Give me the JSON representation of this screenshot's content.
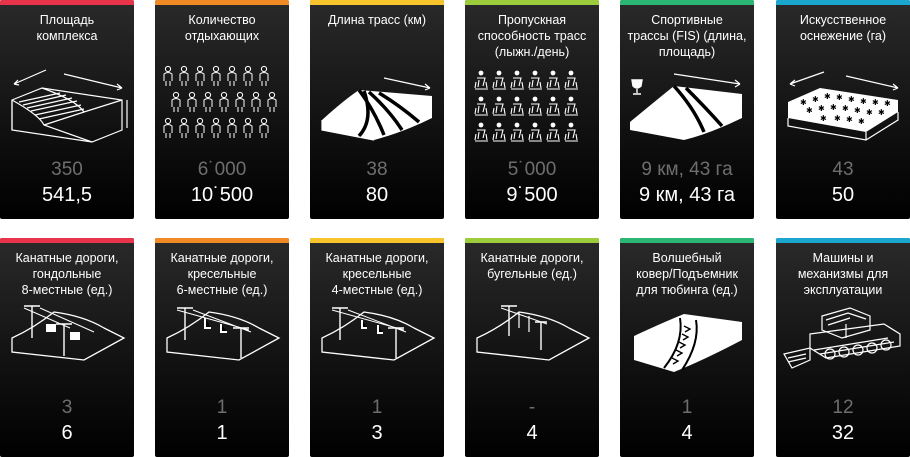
{
  "cards": [
    {
      "title": "Площадь\nкомплекса",
      "value_old": "350",
      "value_new": "541,5",
      "accent": "#e8344b",
      "icon": "area-icon"
    },
    {
      "title": "Количество\nотдыхающих",
      "value_old": "6˙000",
      "value_new": "10˙500",
      "accent": "#f08a24",
      "icon": "people-icon"
    },
    {
      "title": "Длина трасс (км)",
      "value_old": "38",
      "value_new": "80",
      "accent": "#f7c52b",
      "icon": "slopes-icon"
    },
    {
      "title": "Пропускная\nспособность трасс\n(лыжн./день)",
      "value_old": "5˙000",
      "value_new": "9˙500",
      "accent": "#9ccc3b",
      "icon": "skiers-icon"
    },
    {
      "title": "Спортивные\nтрассы (FIS) (длина,\nплощадь)",
      "value_old": "9 км, 43 га",
      "value_new": "9 км, 43 га",
      "accent": "#2bb673",
      "icon": "trophy-slope-icon"
    },
    {
      "title": "Искусственное\nоснежение (га)",
      "value_old": "43",
      "value_new": "50",
      "accent": "#1ba6cf",
      "icon": "snowmaking-icon"
    },
    {
      "title": "Канатные дороги,\nгондольные\n8-местные (ед.)",
      "value_old": "3",
      "value_new": "6",
      "accent": "#e8344b",
      "icon": "gondola-icon"
    },
    {
      "title": "Канатные дороги,\nкресельные\n6-местные (ед.)",
      "value_old": "1",
      "value_new": "1",
      "accent": "#f08a24",
      "icon": "chairlift-6-icon"
    },
    {
      "title": "Канатные дороги,\nкресельные\n4-местные (ед.)",
      "value_old": "1",
      "value_new": "3",
      "accent": "#f7c52b",
      "icon": "chairlift-4-icon"
    },
    {
      "title": "Канатные дороги,\nбугельные (ед.)",
      "value_old": "-",
      "value_new": "4",
      "accent": "#9ccc3b",
      "icon": "draglift-icon"
    },
    {
      "title": "Волшебный\nковер/Подъемник\nдля тюбинга (ед.)",
      "value_old": "1",
      "value_new": "4",
      "accent": "#2bb673",
      "icon": "magic-carpet-icon"
    },
    {
      "title": "Машины и\nмеханизмы для\nэксплуатации",
      "value_old": "12",
      "value_new": "32",
      "accent": "#1ba6cf",
      "icon": "snowcat-icon"
    }
  ]
}
